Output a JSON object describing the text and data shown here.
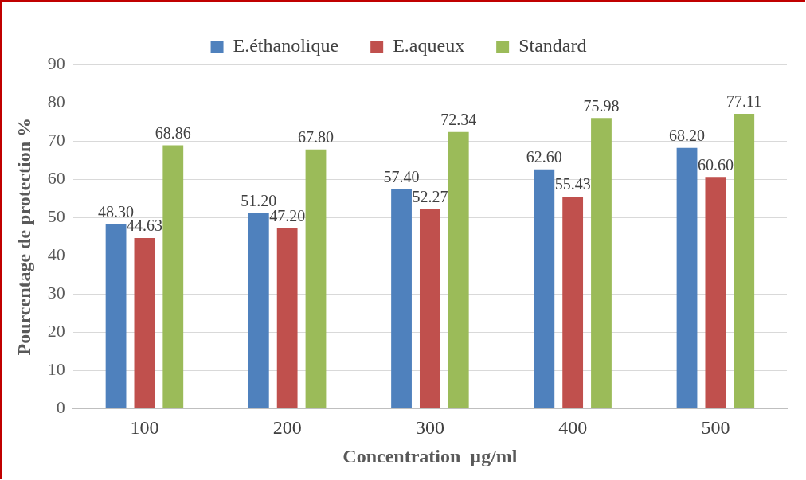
{
  "chart_data": {
    "type": "bar",
    "xlabel": "Concentration  µg/ml",
    "ylabel": "Pourcentage de protection %",
    "categories": [
      "100",
      "200",
      "300",
      "400",
      "500"
    ],
    "series": [
      {
        "name": "E.éthanolique",
        "color": "#4f81bd",
        "values": [
          48.3,
          51.2,
          57.4,
          62.6,
          68.2
        ],
        "value_labels": [
          "48.30",
          "51.20",
          "57.40",
          "62.60",
          "68.20"
        ]
      },
      {
        "name": "E.aqueux",
        "color": "#c0504d",
        "values": [
          44.63,
          47.2,
          52.27,
          55.43,
          60.6
        ],
        "value_labels": [
          "44.63",
          "47.20",
          "52.27",
          "55.43",
          "60.60"
        ]
      },
      {
        "name": "Standard",
        "color": "#9bbb59",
        "values": [
          68.86,
          67.8,
          72.34,
          75.98,
          77.11
        ],
        "value_labels": [
          "68.86",
          "67.80",
          "72.34",
          "75.98",
          "77.11"
        ]
      }
    ],
    "ylim": [
      0,
      90
    ],
    "yticks": [
      0,
      10,
      20,
      30,
      40,
      50,
      60,
      70,
      80,
      90
    ],
    "grid": "y",
    "legend": "top"
  }
}
